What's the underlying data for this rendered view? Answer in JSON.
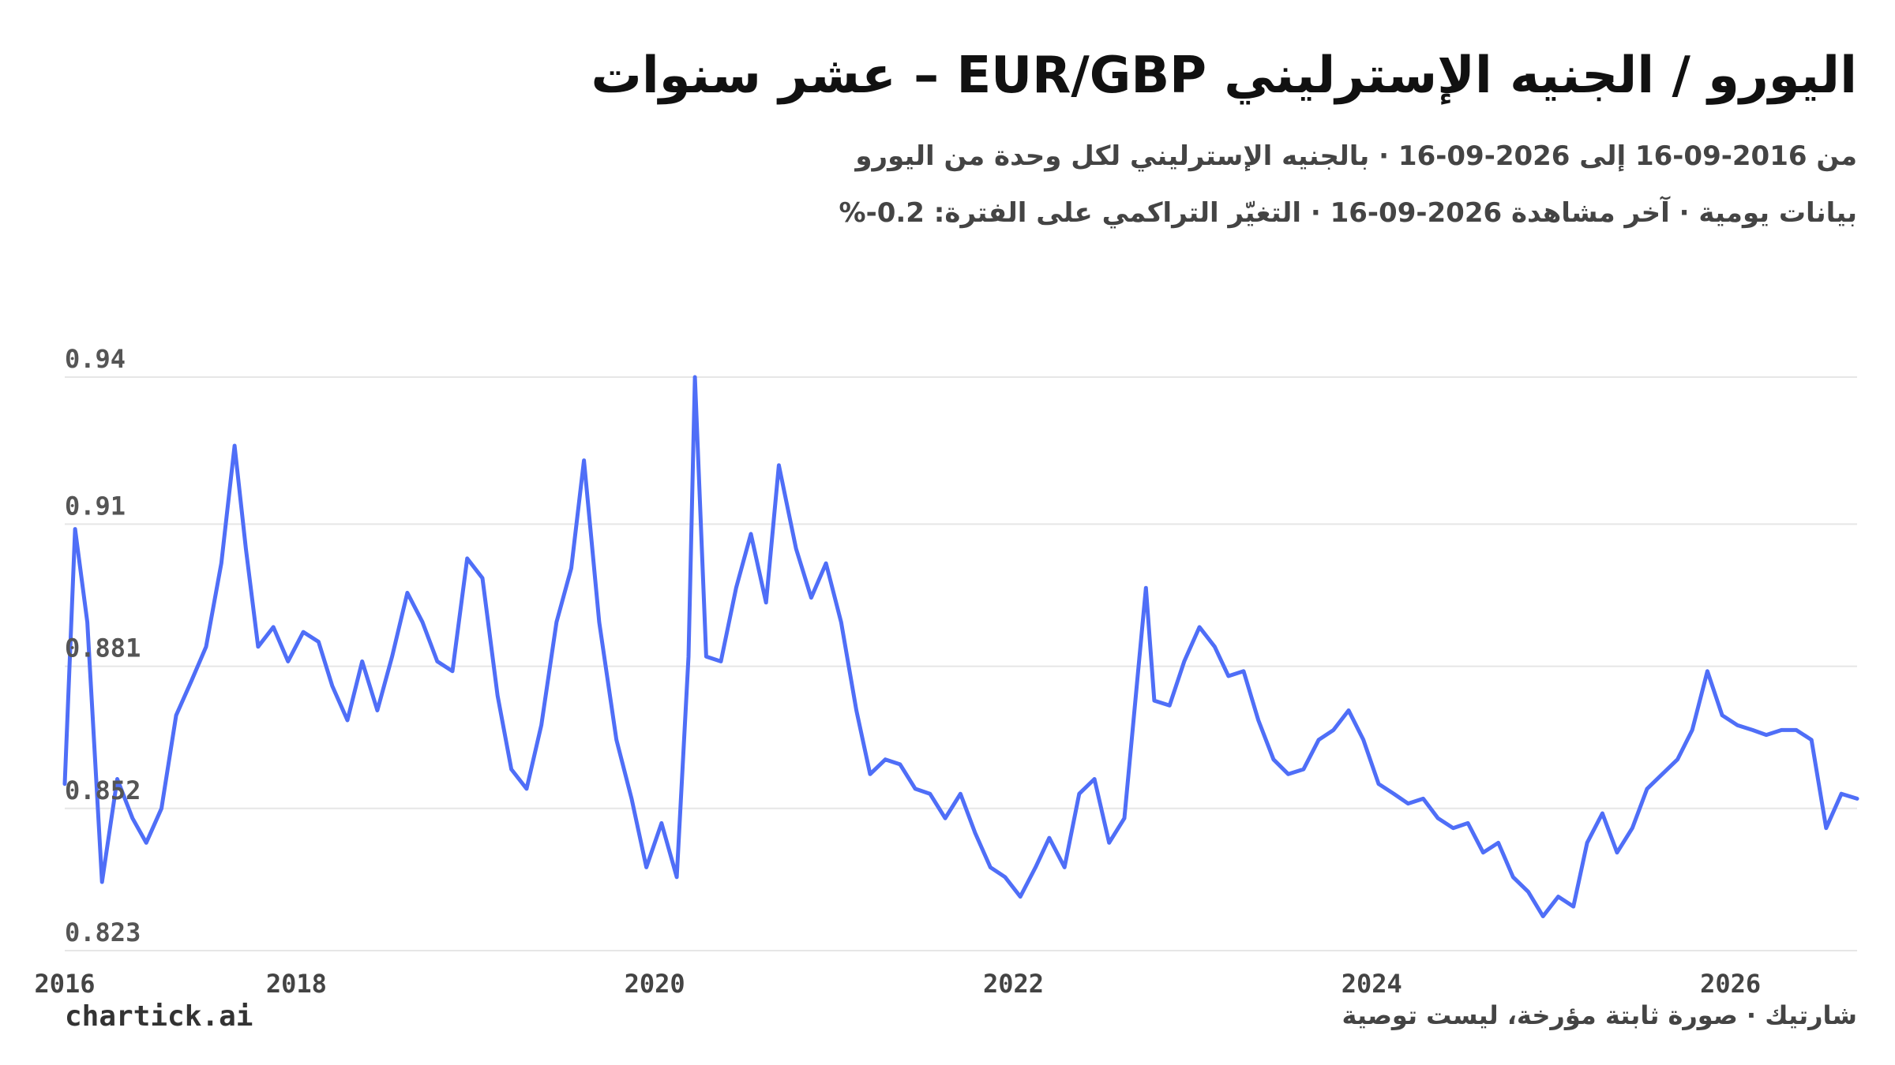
{
  "header": {
    "title": "اليورو / الجنيه الإسترليني EUR/GBP – عشر سنوات",
    "subtitle": "من 2016-09-16 إلى 2026-09-16 · بالجنيه الإسترليني لكل وحدة من اليورو",
    "meta": "بيانات يومية · آخر مشاهدة 2026-09-16 · التغيّر التراكمي على الفترة: 0.2-%"
  },
  "footer": {
    "brand": "chartick.ai",
    "note": "شارتيك · صورة ثابتة مؤرخة، ليست توصية"
  },
  "colors": {
    "line": "#4f6ef7",
    "grid": "#e6e6e6"
  },
  "chart_data": {
    "type": "line",
    "title": "اليورو / الجنيه الإسترليني EUR/GBP – عشر سنوات",
    "series": [
      {
        "x": [
          "2016-09-16",
          "2016-10-07",
          "2016-11-01",
          "2016-12-01",
          "2017-01-01",
          "2017-02-01",
          "2017-03-01",
          "2017-04-01",
          "2017-05-01",
          "2017-06-01",
          "2017-07-01",
          "2017-08-01",
          "2017-08-28",
          "2017-09-20",
          "2017-10-15",
          "2017-11-15",
          "2017-12-15",
          "2018-01-15",
          "2018-02-15",
          "2018-03-15",
          "2018-04-15",
          "2018-05-15",
          "2018-06-15",
          "2018-07-15",
          "2018-08-15",
          "2018-09-15",
          "2018-10-15",
          "2018-11-15",
          "2018-12-15",
          "2019-01-15",
          "2019-02-15",
          "2019-03-15",
          "2019-04-15",
          "2019-05-15",
          "2019-06-15",
          "2019-07-15",
          "2019-08-10",
          "2019-09-10",
          "2019-10-15",
          "2019-11-15",
          "2019-12-15",
          "2020-01-15",
          "2020-02-15",
          "2020-03-10",
          "2020-03-23",
          "2020-04-15",
          "2020-05-15",
          "2020-06-15",
          "2020-07-15",
          "2020-08-15",
          "2020-09-10",
          "2020-10-15",
          "2020-11-15",
          "2020-12-15",
          "2021-01-15",
          "2021-02-15",
          "2021-03-15",
          "2021-04-15",
          "2021-05-15",
          "2021-06-15",
          "2021-07-15",
          "2021-08-15",
          "2021-09-15",
          "2021-10-15",
          "2021-11-15",
          "2021-12-15",
          "2022-01-15",
          "2022-02-15",
          "2022-03-15",
          "2022-04-15",
          "2022-05-15",
          "2022-06-15",
          "2022-07-15",
          "2022-08-15",
          "2022-09-28",
          "2022-10-15",
          "2022-11-15",
          "2022-12-15",
          "2023-01-15",
          "2023-02-15",
          "2023-03-15",
          "2023-04-15",
          "2023-05-15",
          "2023-06-15",
          "2023-07-15",
          "2023-08-15",
          "2023-09-15",
          "2023-10-15",
          "2023-11-15",
          "2023-12-15",
          "2024-01-15",
          "2024-02-15",
          "2024-03-15",
          "2024-04-15",
          "2024-05-15",
          "2024-06-15",
          "2024-07-15",
          "2024-08-15",
          "2024-09-15",
          "2024-10-15",
          "2024-11-15",
          "2024-12-15",
          "2025-01-15",
          "2025-02-15",
          "2025-03-15",
          "2025-04-15",
          "2025-05-15",
          "2025-06-15",
          "2025-07-15",
          "2025-08-15",
          "2025-09-15",
          "2025-10-15",
          "2025-11-15",
          "2025-12-15",
          "2026-01-15",
          "2026-02-15",
          "2026-03-15",
          "2026-04-15",
          "2026-05-15",
          "2026-06-15",
          "2026-07-15",
          "2026-08-15",
          "2026-09-16"
        ],
        "values": [
          0.857,
          0.909,
          0.89,
          0.837,
          0.858,
          0.85,
          0.845,
          0.852,
          0.871,
          0.878,
          0.885,
          0.902,
          0.926,
          0.905,
          0.885,
          0.889,
          0.882,
          0.888,
          0.886,
          0.877,
          0.87,
          0.882,
          0.872,
          0.883,
          0.896,
          0.89,
          0.882,
          0.88,
          0.903,
          0.899,
          0.875,
          0.86,
          0.856,
          0.869,
          0.89,
          0.901,
          0.923,
          0.89,
          0.866,
          0.854,
          0.84,
          0.849,
          0.838,
          0.883,
          0.94,
          0.883,
          0.882,
          0.897,
          0.908,
          0.894,
          0.922,
          0.905,
          0.895,
          0.902,
          0.89,
          0.872,
          0.859,
          0.862,
          0.861,
          0.856,
          0.855,
          0.85,
          0.855,
          0.847,
          0.84,
          0.838,
          0.834,
          0.84,
          0.846,
          0.84,
          0.855,
          0.858,
          0.845,
          0.85,
          0.897,
          0.874,
          0.873,
          0.882,
          0.889,
          0.885,
          0.879,
          0.88,
          0.87,
          0.862,
          0.859,
          0.86,
          0.866,
          0.868,
          0.872,
          0.866,
          0.857,
          0.855,
          0.853,
          0.854,
          0.85,
          0.848,
          0.849,
          0.843,
          0.845,
          0.838,
          0.835,
          0.83,
          0.834,
          0.832,
          0.845,
          0.851,
          0.843,
          0.848,
          0.856,
          0.859,
          0.862,
          0.868,
          0.88,
          0.871,
          0.869,
          0.868,
          0.867,
          0.868,
          0.868,
          0.866,
          0.848,
          0.855,
          0.854
        ]
      }
    ],
    "y_ticks": [
      "0.823",
      "0.852",
      "0.881",
      "0.91",
      "0.94"
    ],
    "x_ticks": [
      "2016",
      "2018",
      "2020",
      "2022",
      "2024",
      "2026"
    ],
    "ylim": [
      0.823,
      0.94
    ],
    "xlim": [
      "2016-09-16",
      "2026-09-16"
    ],
    "grid": true,
    "legend": "none"
  }
}
